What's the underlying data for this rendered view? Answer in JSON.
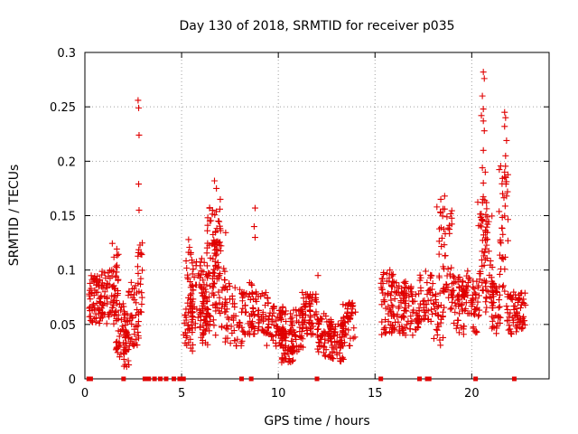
{
  "chart_data": {
    "type": "scatter",
    "title": "Day 130 of 2018, SRMTID for receiver p035",
    "xlabel": "GPS time / hours",
    "ylabel": "SRMTID / TECUs",
    "xlim": [
      0,
      24
    ],
    "ylim": [
      0,
      0.3
    ],
    "xticks": [
      0,
      5,
      10,
      15,
      20
    ],
    "xtick_labels": [
      "0",
      "5",
      "10",
      "15",
      "20"
    ],
    "yticks": [
      0,
      0.05,
      0.1,
      0.15,
      0.2,
      0.25,
      0.3
    ],
    "ytick_labels": [
      "0",
      "0.05",
      "0.1",
      "0.15",
      "0.2",
      "0.25",
      "0.3"
    ],
    "grid": true,
    "marker": "plus",
    "series_color": "#e00000",
    "zero_value_hours": [
      0.2,
      0.3,
      2.0,
      3.1,
      3.3,
      3.6,
      3.9,
      4.2,
      4.6,
      4.9,
      5.1,
      8.1,
      8.6,
      12.0,
      15.3,
      17.3,
      17.7,
      17.8,
      20.2,
      22.2
    ],
    "clusters": [
      {
        "x0": 0.2,
        "x1": 0.8,
        "ymin": 0.05,
        "ymax": 0.095,
        "n": 55
      },
      {
        "x0": 0.8,
        "x1": 1.6,
        "ymin": 0.05,
        "ymax": 0.1,
        "n": 60
      },
      {
        "x0": 1.4,
        "x1": 1.8,
        "ymin": 0.065,
        "ymax": 0.125,
        "n": 25
      },
      {
        "x0": 1.6,
        "x1": 2.2,
        "ymin": 0.02,
        "ymax": 0.07,
        "n": 50
      },
      {
        "x0": 2.0,
        "x1": 2.3,
        "ymin": 0.01,
        "ymax": 0.045,
        "n": 20
      },
      {
        "x0": 2.2,
        "x1": 2.8,
        "ymin": 0.03,
        "ymax": 0.09,
        "n": 45
      },
      {
        "x0": 2.7,
        "x1": 3.0,
        "ymin": 0.06,
        "ymax": 0.125,
        "n": 18
      },
      {
        "x0": 5.1,
        "x1": 5.6,
        "ymin": 0.025,
        "ymax": 0.075,
        "n": 40
      },
      {
        "x0": 5.2,
        "x1": 5.5,
        "ymin": 0.07,
        "ymax": 0.13,
        "n": 14
      },
      {
        "x0": 5.5,
        "x1": 6.4,
        "ymin": 0.045,
        "ymax": 0.115,
        "n": 70
      },
      {
        "x0": 6.0,
        "x1": 6.5,
        "ymin": 0.03,
        "ymax": 0.1,
        "n": 40
      },
      {
        "x0": 6.3,
        "x1": 7.0,
        "ymin": 0.06,
        "ymax": 0.16,
        "n": 55
      },
      {
        "x0": 6.6,
        "x1": 7.3,
        "ymin": 0.04,
        "ymax": 0.14,
        "n": 45
      },
      {
        "x0": 7.2,
        "x1": 8.2,
        "ymin": 0.03,
        "ymax": 0.09,
        "n": 55
      },
      {
        "x0": 8.2,
        "x1": 8.7,
        "ymin": 0.04,
        "ymax": 0.09,
        "n": 30
      },
      {
        "x0": 8.6,
        "x1": 9.5,
        "ymin": 0.04,
        "ymax": 0.08,
        "n": 55
      },
      {
        "x0": 9.4,
        "x1": 10.4,
        "ymin": 0.03,
        "ymax": 0.07,
        "n": 70
      },
      {
        "x0": 10.1,
        "x1": 10.8,
        "ymin": 0.015,
        "ymax": 0.045,
        "n": 50
      },
      {
        "x0": 10.6,
        "x1": 11.3,
        "ymin": 0.025,
        "ymax": 0.065,
        "n": 50
      },
      {
        "x0": 11.2,
        "x1": 12.0,
        "ymin": 0.04,
        "ymax": 0.08,
        "n": 60
      },
      {
        "x0": 12.0,
        "x1": 12.8,
        "ymin": 0.02,
        "ymax": 0.06,
        "n": 60
      },
      {
        "x0": 12.6,
        "x1": 13.4,
        "ymin": 0.015,
        "ymax": 0.055,
        "n": 55
      },
      {
        "x0": 13.3,
        "x1": 14.0,
        "ymin": 0.03,
        "ymax": 0.07,
        "n": 50
      },
      {
        "x0": 15.3,
        "x1": 16.0,
        "ymin": 0.04,
        "ymax": 0.1,
        "n": 55
      },
      {
        "x0": 15.8,
        "x1": 16.6,
        "ymin": 0.04,
        "ymax": 0.09,
        "n": 55
      },
      {
        "x0": 16.4,
        "x1": 17.3,
        "ymin": 0.04,
        "ymax": 0.085,
        "n": 55
      },
      {
        "x0": 17.3,
        "x1": 18.0,
        "ymin": 0.05,
        "ymax": 0.1,
        "n": 40
      },
      {
        "x0": 18.0,
        "x1": 18.6,
        "ymin": 0.03,
        "ymax": 0.085,
        "n": 35
      },
      {
        "x0": 18.3,
        "x1": 19.0,
        "ymin": 0.07,
        "ymax": 0.16,
        "n": 45
      },
      {
        "x0": 18.9,
        "x1": 19.6,
        "ymin": 0.04,
        "ymax": 0.095,
        "n": 45
      },
      {
        "x0": 19.5,
        "x1": 20.0,
        "ymin": 0.06,
        "ymax": 0.1,
        "n": 35
      },
      {
        "x0": 20.0,
        "x1": 20.4,
        "ymin": 0.04,
        "ymax": 0.09,
        "n": 30
      },
      {
        "x0": 20.3,
        "x1": 20.8,
        "ymin": 0.08,
        "ymax": 0.17,
        "n": 40
      },
      {
        "x0": 20.7,
        "x1": 21.1,
        "ymin": 0.06,
        "ymax": 0.15,
        "n": 35
      },
      {
        "x0": 21.0,
        "x1": 21.5,
        "ymin": 0.04,
        "ymax": 0.09,
        "n": 40
      },
      {
        "x0": 21.4,
        "x1": 21.9,
        "ymin": 0.08,
        "ymax": 0.2,
        "n": 35
      },
      {
        "x0": 21.8,
        "x1": 22.5,
        "ymin": 0.04,
        "ymax": 0.08,
        "n": 45
      },
      {
        "x0": 22.3,
        "x1": 22.8,
        "ymin": 0.045,
        "ymax": 0.08,
        "n": 30
      }
    ],
    "outliers": [
      {
        "x": 2.75,
        "y": 0.256
      },
      {
        "x": 2.78,
        "y": 0.249
      },
      {
        "x": 2.8,
        "y": 0.224
      },
      {
        "x": 2.78,
        "y": 0.179
      },
      {
        "x": 2.8,
        "y": 0.155
      },
      {
        "x": 2.85,
        "y": 0.123
      },
      {
        "x": 6.7,
        "y": 0.182
      },
      {
        "x": 6.8,
        "y": 0.175
      },
      {
        "x": 7.0,
        "y": 0.165
      },
      {
        "x": 6.6,
        "y": 0.155
      },
      {
        "x": 6.9,
        "y": 0.145
      },
      {
        "x": 8.8,
        "y": 0.157
      },
      {
        "x": 8.75,
        "y": 0.14
      },
      {
        "x": 8.8,
        "y": 0.13
      },
      {
        "x": 12.05,
        "y": 0.095
      },
      {
        "x": 18.4,
        "y": 0.165
      },
      {
        "x": 18.6,
        "y": 0.168
      },
      {
        "x": 18.2,
        "y": 0.158
      },
      {
        "x": 20.6,
        "y": 0.282
      },
      {
        "x": 20.65,
        "y": 0.276
      },
      {
        "x": 20.55,
        "y": 0.26
      },
      {
        "x": 20.6,
        "y": 0.248
      },
      {
        "x": 20.5,
        "y": 0.242
      },
      {
        "x": 20.6,
        "y": 0.237
      },
      {
        "x": 20.65,
        "y": 0.228
      },
      {
        "x": 20.6,
        "y": 0.21
      },
      {
        "x": 20.55,
        "y": 0.194
      },
      {
        "x": 20.7,
        "y": 0.19
      },
      {
        "x": 20.6,
        "y": 0.18
      },
      {
        "x": 21.7,
        "y": 0.245
      },
      {
        "x": 21.75,
        "y": 0.24
      },
      {
        "x": 21.7,
        "y": 0.232
      },
      {
        "x": 21.8,
        "y": 0.219
      },
      {
        "x": 21.75,
        "y": 0.205
      },
      {
        "x": 21.7,
        "y": 0.19
      },
      {
        "x": 21.85,
        "y": 0.172
      },
      {
        "x": 21.8,
        "y": 0.168
      },
      {
        "x": 17.5,
        "y": 0.055
      }
    ]
  }
}
